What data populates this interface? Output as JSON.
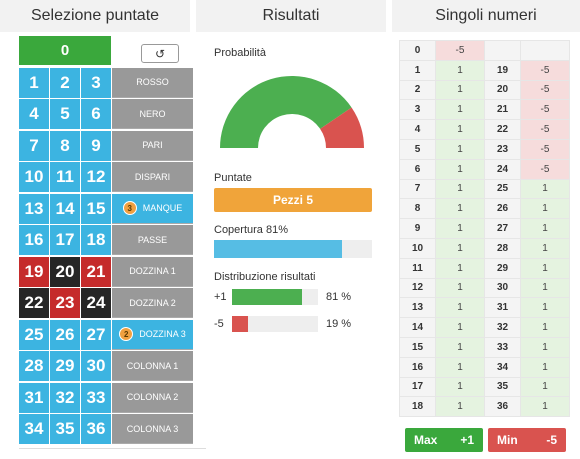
{
  "headers": {
    "selection": "Selezione puntate",
    "results": "Risultati",
    "single_numbers": "Singoli numeri"
  },
  "board": {
    "zero": "0",
    "reset_icon": "refresh-icon",
    "reset_glyph": "↺",
    "rows": [
      {
        "nums": [
          {
            "n": "1",
            "c": "blue"
          },
          {
            "n": "2",
            "c": "blue"
          },
          {
            "n": "3",
            "c": "blue"
          }
        ],
        "bet": "ROSSO",
        "chip": "",
        "active": false
      },
      {
        "nums": [
          {
            "n": "4",
            "c": "blue"
          },
          {
            "n": "5",
            "c": "blue"
          },
          {
            "n": "6",
            "c": "blue"
          }
        ],
        "bet": "NERO",
        "chip": "",
        "active": false
      },
      {
        "nums": [
          {
            "n": "7",
            "c": "blue"
          },
          {
            "n": "8",
            "c": "blue"
          },
          {
            "n": "9",
            "c": "blue"
          }
        ],
        "bet": "PARI",
        "chip": "",
        "active": false
      },
      {
        "nums": [
          {
            "n": "10",
            "c": "blue"
          },
          {
            "n": "11",
            "c": "blue"
          },
          {
            "n": "12",
            "c": "blue"
          }
        ],
        "bet": "DISPARI",
        "chip": "",
        "active": false
      },
      {
        "nums": [
          {
            "n": "13",
            "c": "blue"
          },
          {
            "n": "14",
            "c": "blue"
          },
          {
            "n": "15",
            "c": "blue"
          }
        ],
        "bet": "MANQUE",
        "chip": "3",
        "active": true
      },
      {
        "nums": [
          {
            "n": "16",
            "c": "blue"
          },
          {
            "n": "17",
            "c": "blue"
          },
          {
            "n": "18",
            "c": "blue"
          }
        ],
        "bet": "PASSE",
        "chip": "",
        "active": false
      },
      {
        "nums": [
          {
            "n": "19",
            "c": "red"
          },
          {
            "n": "20",
            "c": "black"
          },
          {
            "n": "21",
            "c": "red"
          }
        ],
        "bet": "DOZZINA 1",
        "chip": "",
        "active": false
      },
      {
        "nums": [
          {
            "n": "22",
            "c": "black"
          },
          {
            "n": "23",
            "c": "red"
          },
          {
            "n": "24",
            "c": "black"
          }
        ],
        "bet": "DOZZINA 2",
        "chip": "",
        "active": false
      },
      {
        "nums": [
          {
            "n": "25",
            "c": "blue"
          },
          {
            "n": "26",
            "c": "blue"
          },
          {
            "n": "27",
            "c": "blue"
          }
        ],
        "bet": "DOZZINA 3",
        "chip": "2",
        "active": true
      },
      {
        "nums": [
          {
            "n": "28",
            "c": "blue"
          },
          {
            "n": "29",
            "c": "blue"
          },
          {
            "n": "30",
            "c": "blue"
          }
        ],
        "bet": "COLONNA 1",
        "chip": "",
        "active": false
      },
      {
        "nums": [
          {
            "n": "31",
            "c": "blue"
          },
          {
            "n": "32",
            "c": "blue"
          },
          {
            "n": "33",
            "c": "blue"
          }
        ],
        "bet": "COLONNA 2",
        "chip": "",
        "active": false
      },
      {
        "nums": [
          {
            "n": "34",
            "c": "blue"
          },
          {
            "n": "35",
            "c": "blue"
          },
          {
            "n": "36",
            "c": "blue"
          }
        ],
        "bet": "COLONNA 3",
        "chip": "",
        "active": false
      }
    ]
  },
  "results": {
    "probability_label": "Probabilità",
    "probability": {
      "win": 0.81,
      "lose": 0.19,
      "win_color": "#4caf50",
      "lose_color": "#d9534f"
    },
    "bets_label": "Puntate",
    "pieces": "Pezzi 5",
    "coverage_label": "Copertura 81%",
    "coverage": 0.81,
    "distribution_label": "Distribuzione risultati",
    "distribution": [
      {
        "label": "+1",
        "pct": "81 %",
        "fraction": 0.81,
        "color": "#4caf50"
      },
      {
        "label": "-5",
        "pct": "19 %",
        "fraction": 0.19,
        "color": "#d9534f"
      }
    ]
  },
  "singles": {
    "zero_row": {
      "n": "0",
      "v": "-5"
    },
    "rows": [
      {
        "a": "1",
        "av": "1",
        "b": "19",
        "bv": "-5"
      },
      {
        "a": "2",
        "av": "1",
        "b": "20",
        "bv": "-5"
      },
      {
        "a": "3",
        "av": "1",
        "b": "21",
        "bv": "-5"
      },
      {
        "a": "4",
        "av": "1",
        "b": "22",
        "bv": "-5"
      },
      {
        "a": "5",
        "av": "1",
        "b": "23",
        "bv": "-5"
      },
      {
        "a": "6",
        "av": "1",
        "b": "24",
        "bv": "-5"
      },
      {
        "a": "7",
        "av": "1",
        "b": "25",
        "bv": "1"
      },
      {
        "a": "8",
        "av": "1",
        "b": "26",
        "bv": "1"
      },
      {
        "a": "9",
        "av": "1",
        "b": "27",
        "bv": "1"
      },
      {
        "a": "10",
        "av": "1",
        "b": "28",
        "bv": "1"
      },
      {
        "a": "11",
        "av": "1",
        "b": "29",
        "bv": "1"
      },
      {
        "a": "12",
        "av": "1",
        "b": "30",
        "bv": "1"
      },
      {
        "a": "13",
        "av": "1",
        "b": "31",
        "bv": "1"
      },
      {
        "a": "14",
        "av": "1",
        "b": "32",
        "bv": "1"
      },
      {
        "a": "15",
        "av": "1",
        "b": "33",
        "bv": "1"
      },
      {
        "a": "16",
        "av": "1",
        "b": "34",
        "bv": "1"
      },
      {
        "a": "17",
        "av": "1",
        "b": "35",
        "bv": "1"
      },
      {
        "a": "18",
        "av": "1",
        "b": "36",
        "bv": "1"
      }
    ],
    "max_label": "Max",
    "max_value": "+1",
    "min_label": "Min",
    "min_value": "-5"
  }
}
